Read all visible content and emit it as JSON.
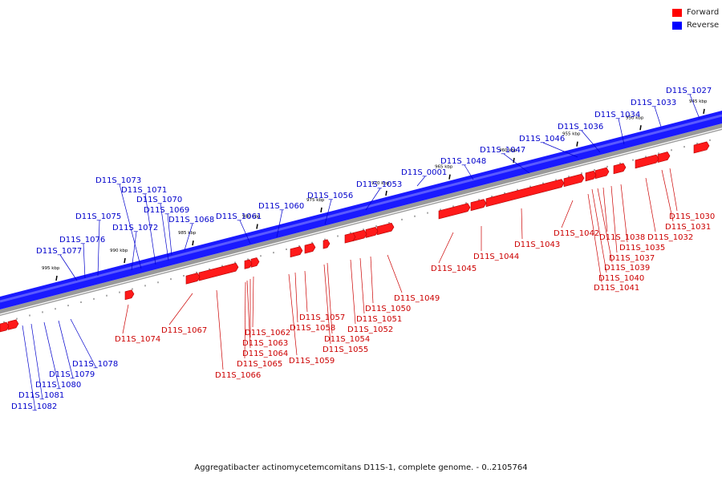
{
  "legend": {
    "forward": {
      "label": "Forward",
      "color": "#ff0000"
    },
    "reverse": {
      "label": "Reverse",
      "color": "#0000ff"
    }
  },
  "caption": "Aggregatibacter actinomycetemcomitans D11S-1, complete genome. - 0..2105764",
  "ticks": [
    "945 kbp",
    "950 kbp",
    "955 kbp",
    "960 kbp",
    "965 kbp",
    "970 kbp",
    "975 kbp",
    "980 kbp",
    "985 kbp",
    "990 kbp",
    "995 kbp"
  ],
  "reverse_labels": [
    "D11S_1027",
    "D11S_1033",
    "D11S_1034",
    "D11S_1036",
    "D11S_1046",
    "D11S_1047",
    "D11S_1048",
    "D11S_0001",
    "D11S_1053",
    "D11S_1056",
    "D11S_1060",
    "D11S_1061",
    "D11S_1068",
    "D11S_1069",
    "D11S_1070",
    "D11S_1071",
    "D11S_1073",
    "D11S_1072",
    "D11S_1075",
    "D11S_1076",
    "D11S_1077",
    "D11S_1078",
    "D11S_1079",
    "D11S_1080",
    "D11S_1081",
    "D11S_1082"
  ],
  "forward_labels": [
    "D11S_1030",
    "D11S_1031",
    "D11S_1032",
    "D11S_1035",
    "D11S_1037",
    "D11S_1038",
    "D11S_1039",
    "D11S_1040",
    "D11S_1041",
    "D11S_1042",
    "D11S_1043",
    "D11S_1044",
    "D11S_1045",
    "D11S_1049",
    "D11S_1050",
    "D11S_1051",
    "D11S_1052",
    "D11S_1054",
    "D11S_1055",
    "D11S_1057",
    "D11S_1058",
    "D11S_1059",
    "D11S_1062",
    "D11S_1063",
    "D11S_1064",
    "D11S_1065",
    "D11S_1066",
    "D11S_1067",
    "D11S_1074"
  ]
}
